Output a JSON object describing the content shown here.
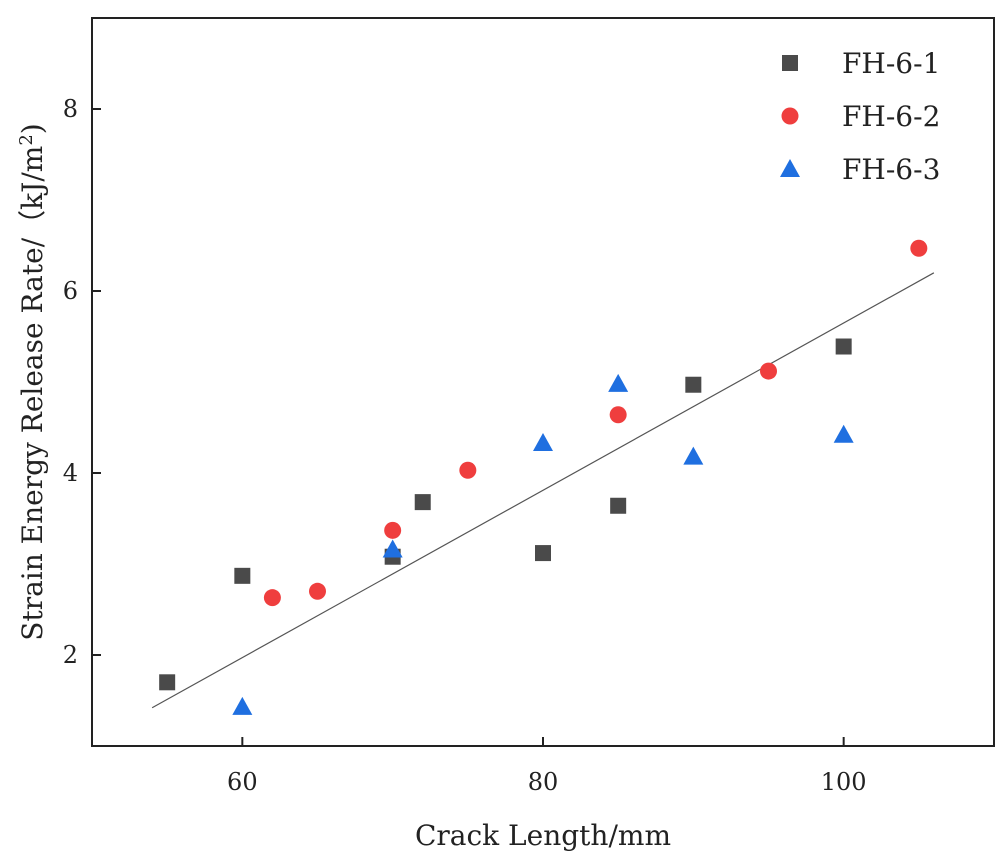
{
  "chart_data": {
    "type": "scatter",
    "title": "",
    "xlabel": "Crack Length/mm",
    "ylabel_prefix": "Strain Energy Release Rate/（kJ/m",
    "ylabel_sup": "2",
    "ylabel_suffix": ")",
    "xlim": [
      50,
      110
    ],
    "ylim": [
      1,
      9
    ],
    "xticks": [
      60,
      80,
      100
    ],
    "yticks": [
      2,
      4,
      6,
      8
    ],
    "grid": false,
    "legend_position": "top-right",
    "series": [
      {
        "name": "FH-6-1",
        "marker": "square",
        "color": "#4a4a4a",
        "points": [
          [
            55,
            1.7
          ],
          [
            60,
            2.87
          ],
          [
            70,
            3.08
          ],
          [
            72,
            3.68
          ],
          [
            80,
            3.12
          ],
          [
            85,
            3.64
          ],
          [
            90,
            4.97
          ],
          [
            100,
            5.39
          ]
        ]
      },
      {
        "name": "FH-6-2",
        "marker": "circle",
        "color": "#ef3e3e",
        "points": [
          [
            62,
            2.63
          ],
          [
            65,
            2.7
          ],
          [
            70,
            3.37
          ],
          [
            75,
            4.03
          ],
          [
            85,
            4.64
          ],
          [
            95,
            5.12
          ],
          [
            105,
            6.47
          ]
        ]
      },
      {
        "name": "FH-6-3",
        "marker": "triangle",
        "color": "#1f6fe0",
        "points": [
          [
            60,
            1.43
          ],
          [
            70,
            3.16
          ],
          [
            80,
            4.33
          ],
          [
            85,
            4.98
          ],
          [
            90,
            4.18
          ],
          [
            100,
            4.42
          ]
        ]
      }
    ],
    "fit_line": {
      "color": "#555555",
      "points": [
        [
          54,
          1.42
        ],
        [
          106,
          6.2
        ]
      ]
    }
  }
}
